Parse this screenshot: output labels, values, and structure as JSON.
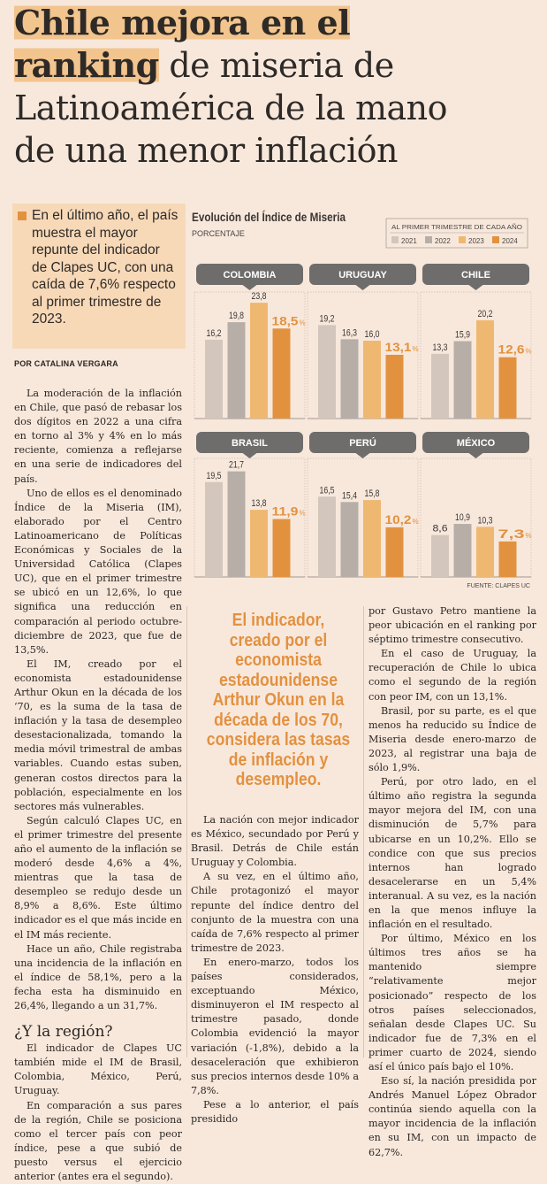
{
  "headline": {
    "line1_bold": "Chile mejora en el",
    "line2_bold": "ranking",
    "line2_rest": " de miseria de",
    "line3": "Latinoamérica de la mano",
    "line4": "de una menor inflación"
  },
  "subhead": "En el último año, el país muestra el mayor repunte del indicador de Clapes UC, con una caída de 7,6% respecto al primer trimestre de 2023.",
  "byline": "POR CATALINA VERGARA",
  "colors": {
    "accent": "#e2923f",
    "highlight": "#f2c48e",
    "background": "#f8e8dc",
    "y2021": "#d3c6bc",
    "y2022": "#b6aea7",
    "y2023": "#efb871",
    "y2024": "#e2923f",
    "pill": "#6f6d6c"
  },
  "column1": {
    "paragraphs": [
      "La moderación de la inflación en Chile, que pasó de rebasar los dos dígitos en 2022 a una cifra en torno al 3% y 4% en lo más reciente, comienza a reflejarse en una serie de indicadores del país.",
      "Uno de ellos es el denominado Índice de la Miseria (IM), elaborado por el Centro Latinoamericano de Políticas Económicas y Sociales de la Universidad Católica (Clapes UC), que en el primer trimestre se ubicó en un 12,6%, lo que significa una reducción en comparación al periodo octubre-diciembre de 2023, que fue de 13,5%.",
      "El IM, creado por el economista estadounidense Arthur Okun en la década de los ‘70, es la suma de la tasa de inflación y la tasa de desempleo desestacionalizada, tomando la media móvil trimestral de ambas variables. Cuando estas suben, generan costos directos para la población, especialmente en los sectores más vulnerables.",
      "Según calculó Clapes UC, en el primer trimestre del presente año el aumento de la inflación se moderó desde 4,6% a 4%, mientras que la tasa de desempleo se redujo desde un 8,9% a 8,6%. Este último indicador es el que más incide en el IM más reciente.",
      "Hace un año, Chile registraba una incidencia de la inflación en el índice de 58,1%, pero a la fecha esta ha disminuido en 26,4%, llegando a un 31,7%."
    ],
    "section_heading": "¿Y la región?",
    "paragraphs2": [
      "El indicador de Clapes UC también mide el IM de Brasil, Colombia, México, Perú, Uruguay.",
      "En comparación a sus pares de la región, Chile se posiciona como el tercer país con peor índice, pese a que subió de puesto versus el ejercicio anterior (antes era el segundo)."
    ]
  },
  "pull_quote": "El indicador, creado por el economista estadounidense Arthur Okun en la década de los 70, considera las tasas de inflación y desempleo.",
  "column2": {
    "paragraphs": [
      "La nación con mejor indicador es México, secundado por Perú y Brasil. Detrás de Chile están Uruguay y Colombia.",
      "A su vez, en el último año, Chile protagonizó el mayor repunte del índice dentro del conjunto de la muestra con una caída de 7,6% respecto al primer trimestre de 2023.",
      "En enero-marzo, todos los países considerados, exceptuando México, disminuyeron el IM respecto al trimestre pasado, donde Colombia evidenció la mayor variación (-1,8%), debido a la desaceleración que exhibieron sus precios internos desde 10% a 7,8%.",
      "Pese a lo anterior, el país presidido"
    ]
  },
  "column3": {
    "paragraphs": [
      "por Gustavo Petro mantiene la peor ubicación en el ranking por séptimo trimestre consecutivo.",
      "En el caso de Uruguay, la recuperación de Chile lo ubica como el segundo de la región con peor IM, con un 13,1%.",
      "Brasil, por su parte, es el que menos ha reducido su Índice de Miseria desde enero-marzo de 2023, al registrar una baja de sólo 1,9%.",
      "Perú, por otro lado, en el último año registra la segunda mayor mejora del IM, con una disminución de 5,7% para ubicarse en un 10,2%. Ello se condice con que sus precios internos han logrado desacelerarse en un 5,4% interanual. A su vez, es la nación en la que menos influye la inflación en el resultado.",
      "Por último, México en los últimos tres años se ha mantenido siempre “relativamente mejor posicionado” respecto de los otros países seleccionados, señalan desde Clapes UC. Su indicador fue de 7,3% en el primer cuarto de 2024, siendo así el único país bajo el 10%.",
      "Eso sí, la nación presidida por Andrés Manuel López Obrador continúa siendo aquella con la mayor incidencia de la inflación en su IM, con un impacto de 62,7%."
    ]
  },
  "chart_data": {
    "type": "bar",
    "title": "Evolución del Índice de Miseria",
    "subtitle": "PORCENTAJE",
    "legend_title": "AL PRIMER TRIMESTRE DE CADA AÑO",
    "legend_placement": "top-right",
    "source": "FUENTE: CLAPES UC",
    "series_names": [
      "2021",
      "2022",
      "2023",
      "2024"
    ],
    "percent_suffix": "%",
    "panels": [
      {
        "country": "COLOMBIA",
        "values": [
          16.2,
          19.8,
          23.8,
          18.5
        ],
        "labels": [
          "16,2",
          "19,8",
          "23,8",
          "18,5"
        ]
      },
      {
        "country": "URUGUAY",
        "values": [
          19.2,
          16.3,
          16.0,
          13.1
        ],
        "labels": [
          "19,2",
          "16,3",
          "16,0",
          "13,1"
        ]
      },
      {
        "country": "CHILE",
        "values": [
          13.3,
          15.9,
          20.2,
          12.6
        ],
        "labels": [
          "13,3",
          "15,9",
          "20,2",
          "12,6"
        ]
      },
      {
        "country": "BRASIL",
        "values": [
          19.5,
          21.7,
          13.8,
          11.9
        ],
        "labels": [
          "19,5",
          "21,7",
          "13,8",
          "11,9"
        ]
      },
      {
        "country": "PERÚ",
        "values": [
          16.5,
          15.4,
          15.8,
          10.2
        ],
        "labels": [
          "16,5",
          "15,4",
          "15,8",
          "10,2"
        ]
      },
      {
        "country": "MÉXICO",
        "values": [
          8.6,
          10.9,
          10.3,
          7.3
        ],
        "labels": [
          "8,6",
          "10,9",
          "10,3",
          "7,3"
        ]
      }
    ]
  }
}
